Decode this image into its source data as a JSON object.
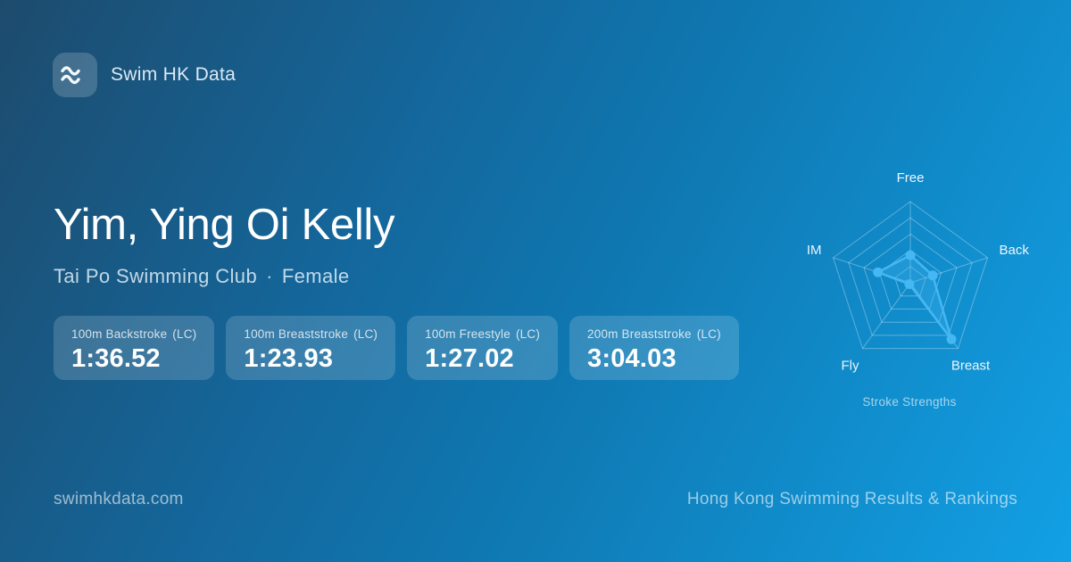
{
  "brand": {
    "name": "Swim HK Data",
    "logo_icon": "waves"
  },
  "profile": {
    "name": "Yim, Ying Oi Kelly",
    "club": "Tai Po Swimming Club",
    "separator": "·",
    "gender": "Female"
  },
  "stats": [
    {
      "label": "100m Backstroke",
      "course": "(LC)",
      "value": "1:36.52"
    },
    {
      "label": "100m Breaststroke",
      "course": "(LC)",
      "value": "1:23.93"
    },
    {
      "label": "100m Freestyle",
      "course": "(LC)",
      "value": "1:27.02"
    },
    {
      "label": "200m Breaststroke",
      "course": "(LC)",
      "value": "3:04.03"
    }
  ],
  "chart_data": {
    "type": "radar",
    "title": "Stroke Strengths",
    "categories": [
      "Free",
      "Back",
      "Breast",
      "Fly",
      "IM"
    ],
    "values": [
      0.34,
      0.29,
      0.86,
      0.02,
      0.42
    ],
    "max": 1,
    "grid_levels": [
      0.2,
      0.4,
      0.6,
      0.8,
      1.0
    ],
    "legend": "none",
    "line_color": "#45b7f2",
    "fill_color": "rgba(69,183,242,0.30)",
    "grid_color": "rgba(255,255,255,0.32)",
    "label_color": "rgba(255,255,255,0.92)"
  },
  "footer": {
    "left": "swimhkdata.com",
    "right": "Hong Kong Swimming Results & Rankings"
  },
  "colors": {
    "background_start": "#1d4b6d",
    "background_end": "#12a0e5",
    "card_background": "rgba(255,255,255,0.16)",
    "accent": "#45b7f2"
  }
}
